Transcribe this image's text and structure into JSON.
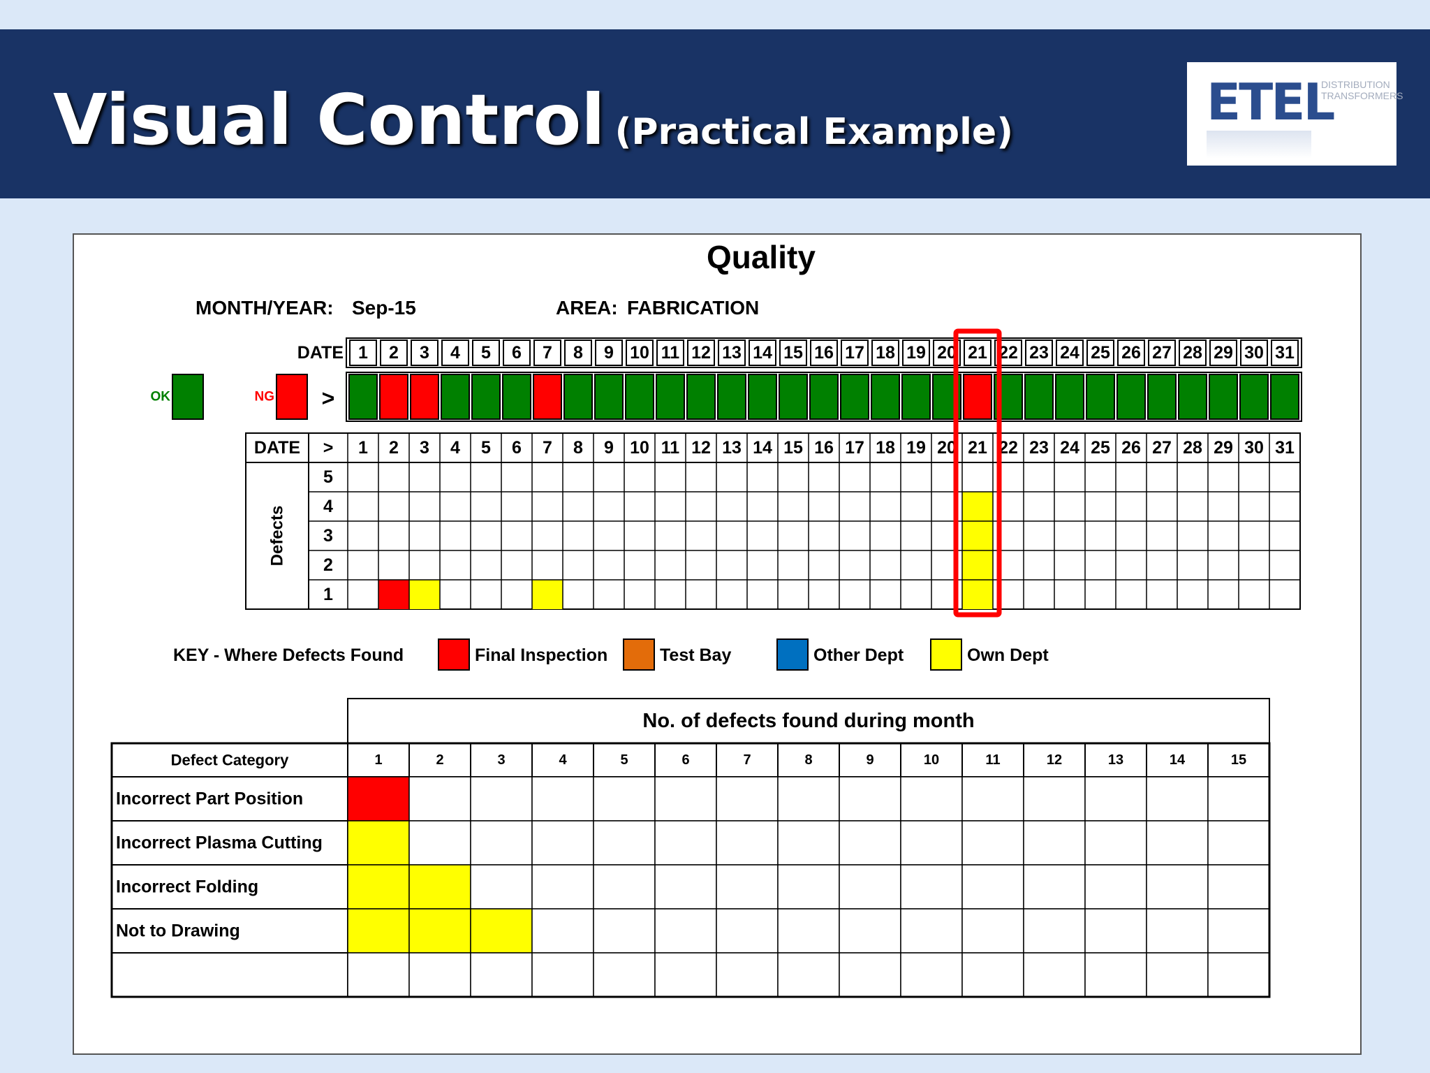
{
  "header": {
    "title": "Visual Control",
    "subtitle": "(Practical Example)"
  },
  "logo": {
    "mark": "ETEL",
    "line1": "DISTRIBUTION",
    "line2": "TRANSFORMERS"
  },
  "board": {
    "heading": "Quality",
    "month_label": "MONTH/YEAR:",
    "month_value": "Sep-15",
    "area_label": "AREA:",
    "area_value": "FABRICATION",
    "date_label": "DATE",
    "arrow": ">",
    "ok_label": "OK",
    "ng_label": "NG",
    "defects_axis_label": "Defects",
    "highlighted_day": 21
  },
  "colors": {
    "ok": "#008000",
    "ng": "#ff0000",
    "final_inspection": "#ff0000",
    "test_bay": "#e36c0a",
    "other_dept": "#0070c0",
    "own_dept": "#ffff00",
    "highlight": "#ff0000",
    "banner": "#193365"
  },
  "days": [
    1,
    2,
    3,
    4,
    5,
    6,
    7,
    8,
    9,
    10,
    11,
    12,
    13,
    14,
    15,
    16,
    17,
    18,
    19,
    20,
    21,
    22,
    23,
    24,
    25,
    26,
    27,
    28,
    29,
    30,
    31
  ],
  "status": [
    "OK",
    "NG",
    "NG",
    "OK",
    "OK",
    "OK",
    "NG",
    "OK",
    "OK",
    "OK",
    "OK",
    "OK",
    "OK",
    "OK",
    "OK",
    "OK",
    "OK",
    "OK",
    "OK",
    "OK",
    "NG",
    "OK",
    "OK",
    "OK",
    "OK",
    "OK",
    "OK",
    "OK",
    "OK",
    "OK",
    "OK"
  ],
  "defect_levels": [
    5,
    4,
    3,
    2,
    1
  ],
  "daily_defects": [
    {
      "day": 2,
      "defects": [
        "final_inspection"
      ]
    },
    {
      "day": 3,
      "defects": [
        "own_dept"
      ]
    },
    {
      "day": 7,
      "defects": [
        "own_dept"
      ]
    },
    {
      "day": 21,
      "defects": [
        "own_dept",
        "own_dept",
        "own_dept",
        "own_dept"
      ]
    }
  ],
  "key": {
    "label": "KEY - Where Defects Found",
    "items": [
      {
        "id": "final_inspection",
        "label": "Final Inspection"
      },
      {
        "id": "test_bay",
        "label": "Test Bay"
      },
      {
        "id": "other_dept",
        "label": "Other Dept"
      },
      {
        "id": "own_dept",
        "label": "Own Dept"
      }
    ]
  },
  "summary": {
    "title": "No. of defects found during month",
    "category_header": "Defect Category",
    "columns": [
      1,
      2,
      3,
      4,
      5,
      6,
      7,
      8,
      9,
      10,
      11,
      12,
      13,
      14,
      15
    ],
    "rows": [
      {
        "category": "Incorrect Part Position",
        "defects": [
          "final_inspection"
        ]
      },
      {
        "category": "Incorrect Plasma Cutting",
        "defects": [
          "own_dept"
        ]
      },
      {
        "category": "Incorrect Folding",
        "defects": [
          "own_dept",
          "own_dept"
        ]
      },
      {
        "category": "Not to Drawing",
        "defects": [
          "own_dept",
          "own_dept",
          "own_dept"
        ]
      },
      {
        "category": "",
        "defects": []
      }
    ]
  }
}
